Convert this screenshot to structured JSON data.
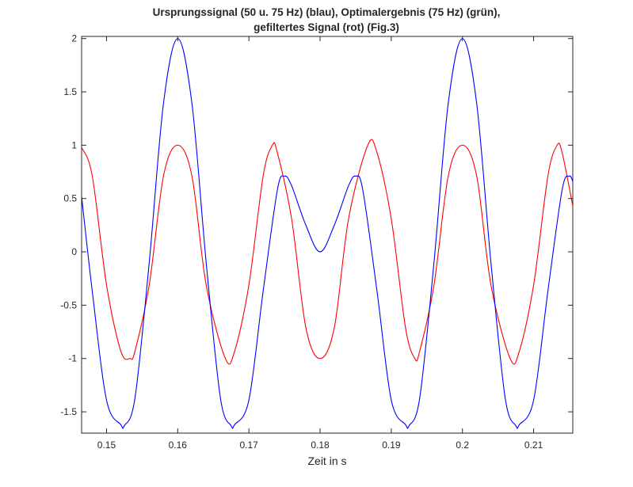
{
  "chart_data": {
    "type": "line",
    "title": [
      "Ursprungssignal (50 u. 75 Hz) (blau), Optimalergebnis (75 Hz) (grün),",
      "gefiltertes Signal (rot) (Fig.3)"
    ],
    "xlabel": "Zeit in s",
    "ylabel": "",
    "xlim": [
      0.1465,
      0.2155
    ],
    "ylim": [
      -1.7,
      2.02
    ],
    "xticks": [
      0.15,
      0.16,
      0.17,
      0.18,
      0.19,
      0.2,
      0.21
    ],
    "xtick_labels": [
      "0.15",
      "0.16",
      "0.17",
      "0.18",
      "0.19",
      "0.2",
      "0.21"
    ],
    "yticks": [
      -1.5,
      -1,
      -0.5,
      0,
      0.5,
      1,
      1.5,
      2
    ],
    "ytick_labels": [
      "-1.5",
      "-1",
      "-0.5",
      "0",
      "0.5",
      "1",
      "1.5",
      "2"
    ],
    "grid": false,
    "series": [
      {
        "color": "#0000ff",
        "x": [
          0.1465,
          0.148,
          0.15,
          0.152,
          0.1525,
          0.154,
          0.156,
          0.158,
          0.16,
          0.162,
          0.164,
          0.166,
          0.1675,
          0.168,
          0.17,
          0.172,
          0.174,
          0.175,
          0.176,
          0.178,
          0.18,
          0.182,
          0.184,
          0.185,
          0.186,
          0.188,
          0.19,
          0.192,
          0.1925,
          0.194,
          0.196,
          0.198,
          0.2,
          0.202,
          0.204,
          0.206,
          0.2075,
          0.208,
          0.21,
          0.212,
          0.214,
          0.215,
          0.2155
        ],
        "y": [
          0.52,
          -0.37,
          -1.39,
          -1.62,
          -1.63,
          -1.37,
          -0.1,
          1.39,
          2.0,
          1.39,
          -0.1,
          -1.37,
          -1.63,
          -1.62,
          -1.39,
          -0.37,
          0.58,
          0.71,
          0.62,
          0.25,
          0.0,
          0.25,
          0.62,
          0.71,
          0.58,
          -0.37,
          -1.39,
          -1.62,
          -1.63,
          -1.37,
          -0.1,
          1.39,
          2.0,
          1.39,
          -0.1,
          -1.37,
          -1.63,
          -1.62,
          -1.39,
          -0.37,
          0.58,
          0.71,
          0.66
        ]
      },
      {
        "color": "#ff0000",
        "x": [
          0.1465,
          0.148,
          0.15,
          0.152,
          0.1533,
          0.154,
          0.156,
          0.158,
          0.16,
          0.162,
          0.164,
          0.1667,
          0.168,
          0.17,
          0.172,
          0.1733,
          0.174,
          0.176,
          0.178,
          0.18,
          0.182,
          0.184,
          0.1867,
          0.188,
          0.19,
          0.192,
          0.1933,
          0.194,
          0.196,
          0.198,
          0.2,
          0.202,
          0.204,
          0.2067,
          0.208,
          0.21,
          0.212,
          0.2133,
          0.214,
          0.2155
        ],
        "y": [
          0.98,
          0.71,
          -0.31,
          -0.93,
          -1.0,
          -0.93,
          -0.31,
          0.71,
          1.0,
          0.71,
          -0.31,
          -1.0,
          -0.93,
          -0.31,
          0.71,
          1.0,
          0.93,
          0.31,
          -0.71,
          -1.0,
          -0.71,
          0.31,
          1.0,
          0.93,
          0.31,
          -0.71,
          -1.0,
          -0.93,
          -0.31,
          0.71,
          1.0,
          0.71,
          -0.31,
          -1.0,
          -0.93,
          -0.31,
          0.71,
          1.0,
          0.93,
          0.43
        ]
      }
    ]
  },
  "colors": {
    "axis": "#262626",
    "background": "#ffffff"
  }
}
